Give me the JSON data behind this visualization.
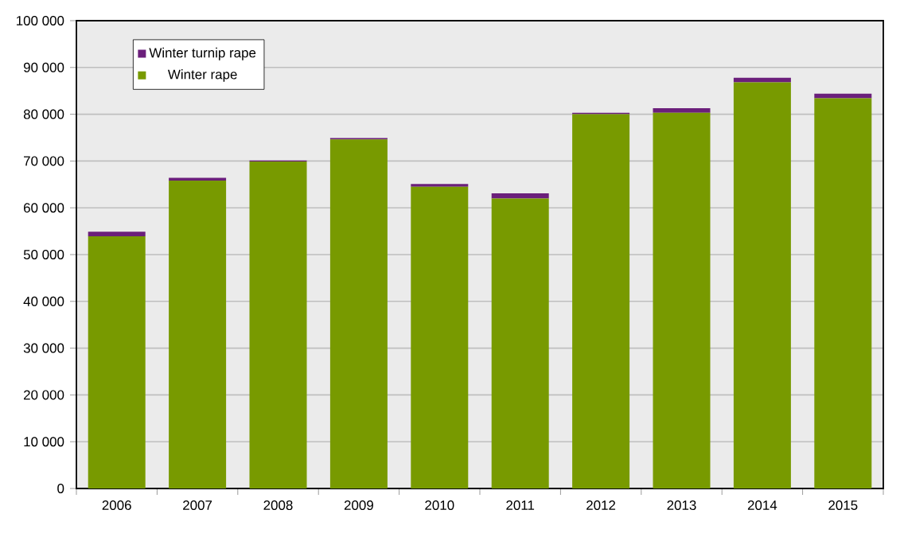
{
  "chart_data": {
    "type": "bar",
    "stacked": true,
    "categories": [
      "2006",
      "2007",
      "2008",
      "2009",
      "2010",
      "2011",
      "2012",
      "2013",
      "2014",
      "2015"
    ],
    "series": [
      {
        "name": "Winter rape",
        "color": "#789a00",
        "values": [
          53900,
          65800,
          69900,
          74600,
          64500,
          62000,
          80000,
          80300,
          86800,
          83400
        ]
      },
      {
        "name": "Winter turnip rape",
        "color": "#6b1f7b",
        "values": [
          1000,
          600,
          200,
          300,
          600,
          1100,
          300,
          1000,
          1000,
          1000
        ]
      }
    ],
    "ylim": [
      0,
      100000
    ],
    "yticks": [
      {
        "value": 0,
        "label": "0"
      },
      {
        "value": 10000,
        "label": "10 000"
      },
      {
        "value": 20000,
        "label": "20 000"
      },
      {
        "value": 30000,
        "label": "30 000"
      },
      {
        "value": 40000,
        "label": "40 000"
      },
      {
        "value": 50000,
        "label": "50 000"
      },
      {
        "value": 60000,
        "label": "60 000"
      },
      {
        "value": 70000,
        "label": "70 000"
      },
      {
        "value": 80000,
        "label": "80 000"
      },
      {
        "value": 90000,
        "label": "90 000"
      },
      {
        "value": 100000,
        "label": "100 000"
      }
    ],
    "grid": "y",
    "legend": "top left"
  }
}
